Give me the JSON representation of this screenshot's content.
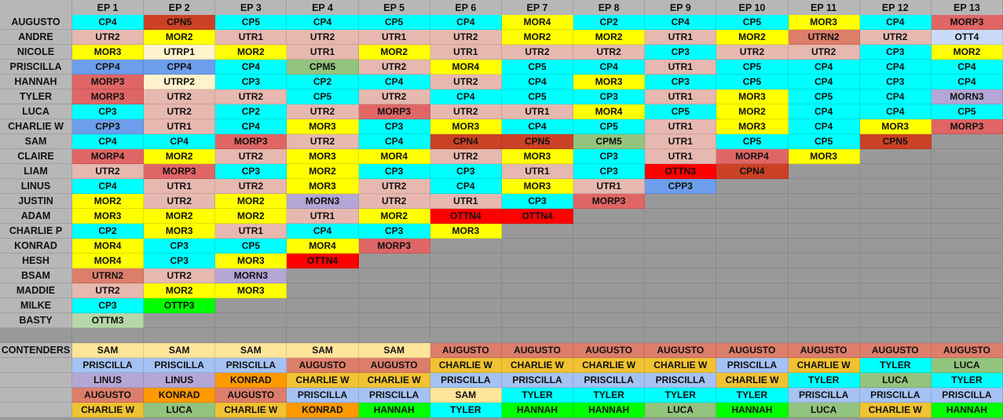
{
  "header": {
    "corner": "",
    "episodes": [
      "EP 1",
      "EP 2",
      "EP 3",
      "EP 4",
      "EP 5",
      "EP 6",
      "EP 7",
      "EP 8",
      "EP 9",
      "EP 10",
      "EP 11",
      "EP 12",
      "EP 13"
    ]
  },
  "rows": [
    {
      "name": "AUGUSTO",
      "cells": [
        "CP4",
        "CPN5",
        "CP5",
        "CP4",
        "CP5",
        "CP4",
        "MOR4",
        "CP2",
        "CP4",
        "CP5",
        "MOR3",
        "CP4",
        "MORP3"
      ]
    },
    {
      "name": "ANDRE",
      "cells": [
        "UTR2",
        "MOR2",
        "UTR1",
        "UTR2",
        "UTR1",
        "UTR2",
        "MOR2",
        "MOR2",
        "UTR1",
        "MOR2",
        "UTRN2",
        "UTR2",
        "OTT4"
      ]
    },
    {
      "name": "NICOLE",
      "cells": [
        "MOR3",
        "UTRP1",
        "MOR2",
        "UTR1",
        "MOR2",
        "UTR1",
        "UTR2",
        "UTR2",
        "CP3",
        "UTR2",
        "UTR2",
        "CP3",
        "MOR2"
      ]
    },
    {
      "name": "PRISCILLA",
      "cells": [
        "CPP4",
        "CPP4",
        "CP4",
        "CPM5",
        "UTR2",
        "MOR4",
        "CP5",
        "CP4",
        "UTR1",
        "CP5",
        "CP4",
        "CP4",
        "CP4"
      ]
    },
    {
      "name": "HANNAH",
      "cells": [
        "MORP3",
        "UTRP2",
        "CP3",
        "CP2",
        "CP4",
        "UTR2",
        "CP4",
        "MOR3",
        "CP3",
        "CP5",
        "CP4",
        "CP3",
        "CP4"
      ]
    },
    {
      "name": "TYLER",
      "cells": [
        "MORP3",
        "UTR2",
        "UTR2",
        "CP5",
        "UTR2",
        "CP4",
        "CP5",
        "CP3",
        "UTR1",
        "MOR3",
        "CP5",
        "CP4",
        "MORN3"
      ]
    },
    {
      "name": "LUCA",
      "cells": [
        "CP3",
        "UTR2",
        "CP2",
        "UTR2",
        "MORP3",
        "UTR2",
        "UTR1",
        "MOR4",
        "CP5",
        "MOR2",
        "CP4",
        "CP4",
        "CP5"
      ]
    },
    {
      "name": "CHARLIE W",
      "cells": [
        "CPP3",
        "UTR1",
        "CP4",
        "MOR3",
        "CP3",
        "MOR3",
        "CP4",
        "CP5",
        "UTR1",
        "MOR3",
        "CP4",
        "MOR3",
        "MORP3"
      ]
    },
    {
      "name": "SAM",
      "cells": [
        "CP4",
        "CP4",
        "MORP3",
        "UTR2",
        "CP4",
        "CPN4",
        "CPN5",
        "CPM5",
        "UTR1",
        "CP5",
        "CP5",
        "CPN5"
      ]
    },
    {
      "name": "CLAIRE",
      "cells": [
        "MORP4",
        "MOR2",
        "UTR2",
        "MOR3",
        "MOR4",
        "UTR2",
        "MOR3",
        "CP3",
        "UTR1",
        "MORP4",
        "MOR3"
      ]
    },
    {
      "name": "LIAM",
      "cells": [
        "UTR2",
        "MORP3",
        "CP3",
        "MOR2",
        "CP3",
        "CP3",
        "UTR1",
        "CP3",
        "OTTN3",
        "CPN4"
      ]
    },
    {
      "name": "LINUS",
      "cells": [
        "CP4",
        "UTR1",
        "UTR2",
        "MOR3",
        "UTR2",
        "CP4",
        "MOR3",
        "UTR1",
        "CPP3"
      ]
    },
    {
      "name": "JUSTIN",
      "cells": [
        "MOR2",
        "UTR2",
        "MOR2",
        "MORN3",
        "UTR2",
        "UTR1",
        "CP3",
        "MORP3"
      ]
    },
    {
      "name": "ADAM",
      "cells": [
        "MOR3",
        "MOR2",
        "MOR2",
        "UTR1",
        "MOR2",
        "OTTN4",
        "OTTN4"
      ]
    },
    {
      "name": "CHARLIE P",
      "cells": [
        "CP2",
        "MOR3",
        "UTR1",
        "CP4",
        "CP3",
        "MOR3"
      ]
    },
    {
      "name": "KONRAD",
      "cells": [
        "MOR4",
        "CP3",
        "CP5",
        "MOR4",
        "MORP3"
      ]
    },
    {
      "name": "HESH",
      "cells": [
        "MOR4",
        "CP3",
        "MOR3",
        "OTTN4"
      ]
    },
    {
      "name": "BSAM",
      "cells": [
        "UTRN2",
        "UTR2",
        "MORN3"
      ]
    },
    {
      "name": "MADDIE",
      "cells": [
        "UTR2",
        "MOR2",
        "MOR3"
      ]
    },
    {
      "name": "MILKE",
      "cells": [
        "CP3",
        "OTTP3"
      ]
    },
    {
      "name": "BASTY",
      "cells": [
        "OTTM3"
      ]
    }
  ],
  "contenders": {
    "label": "CONTENDERS",
    "rows": [
      [
        "SAM",
        "SAM",
        "SAM",
        "SAM",
        "SAM",
        "AUGUSTO",
        "AUGUSTO",
        "AUGUSTO",
        "AUGUSTO",
        "AUGUSTO",
        "AUGUSTO",
        "AUGUSTO",
        "AUGUSTO"
      ],
      [
        "PRISCILLA",
        "PRISCILLA",
        "PRISCILLA",
        "AUGUSTO",
        "AUGUSTO",
        "CHARLIE W",
        "CHARLIE W",
        "CHARLIE W",
        "CHARLIE W",
        "PRISCILLA",
        "CHARLIE W",
        "TYLER",
        "LUCA"
      ],
      [
        "LINUS",
        "LINUS",
        "KONRAD",
        "CHARLIE W",
        "CHARLIE W",
        "PRISCILLA",
        "PRISCILLA",
        "PRISCILLA",
        "PRISCILLA",
        "CHARLIE W",
        "TYLER",
        "LUCA",
        "TYLER"
      ],
      [
        "AUGUSTO",
        "KONRAD",
        "AUGUSTO",
        "PRISCILLA",
        "PRISCILLA",
        "SAM",
        "TYLER",
        "TYLER",
        "TYLER",
        "TYLER",
        "PRISCILLA",
        "PRISCILLA",
        "PRISCILLA"
      ],
      [
        "CHARLIE W",
        "LUCA",
        "CHARLIE W",
        "KONRAD",
        "HANNAH",
        "TYLER",
        "HANNAH",
        "HANNAH",
        "LUCA",
        "HANNAH",
        "LUCA",
        "CHARLIE W",
        "HANNAH"
      ]
    ]
  },
  "colors": {
    "code": {
      "CP": "#00ffff",
      "UTR": "#e6b8af",
      "MOR": "#ffff00",
      "MORP": "#e06666",
      "CPN": "#cc4125",
      "CPP": "#6d9eeb",
      "CPM": "#93c47d",
      "UTRP": "#fff2cc",
      "MORN": "#b4a7d6",
      "UTRN": "#dd7e6b",
      "OTTN": "#ff0000",
      "OTTP": "#00ff00",
      "OTTM": "#b6d7a8",
      "OTT": "#c9daf8"
    },
    "contender": {
      "SAM": "#ffe599",
      "PRISCILLA": "#a4c2f4",
      "LINUS": "#b4a7d6",
      "AUGUSTO": "#dd7e6b",
      "CHARLIE W": "#f1c232",
      "KONRAD": "#ff9900",
      "LUCA": "#93c47d",
      "HANNAH": "#00ff00",
      "TYLER": "#00ffff"
    },
    "empty": "#999999",
    "header": "#b7b7b7"
  }
}
